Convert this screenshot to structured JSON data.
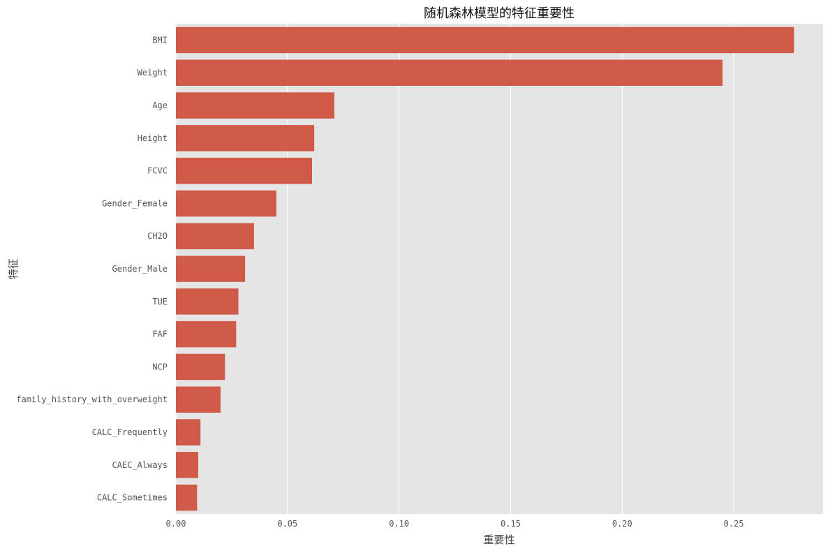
{
  "chart_data": {
    "type": "bar",
    "orientation": "horizontal",
    "title": "随机森林模型的特征重要性",
    "xlabel": "重要性",
    "ylabel": "特征",
    "categories": [
      "BMI",
      "Weight",
      "Age",
      "Height",
      "FCVC",
      "Gender_Female",
      "CH2O",
      "Gender_Male",
      "TUE",
      "FAF",
      "NCP",
      "family_history_with_overweight",
      "CALC_Frequently",
      "CAEC_Always",
      "CALC_Sometimes"
    ],
    "values": [
      0.277,
      0.245,
      0.071,
      0.062,
      0.061,
      0.045,
      0.035,
      0.031,
      0.028,
      0.027,
      0.022,
      0.02,
      0.011,
      0.01,
      0.0095
    ],
    "xlim": [
      0,
      0.29
    ],
    "xticks": [
      0.0,
      0.05,
      0.1,
      0.15,
      0.2,
      0.25
    ],
    "xtick_labels": [
      "0.00",
      "0.05",
      "0.10",
      "0.15",
      "0.20",
      "0.25"
    ],
    "grid": true,
    "colors": {
      "bar": "#cf5a47",
      "plot_background": "#e5e5e5",
      "grid": "#ffffff"
    }
  }
}
